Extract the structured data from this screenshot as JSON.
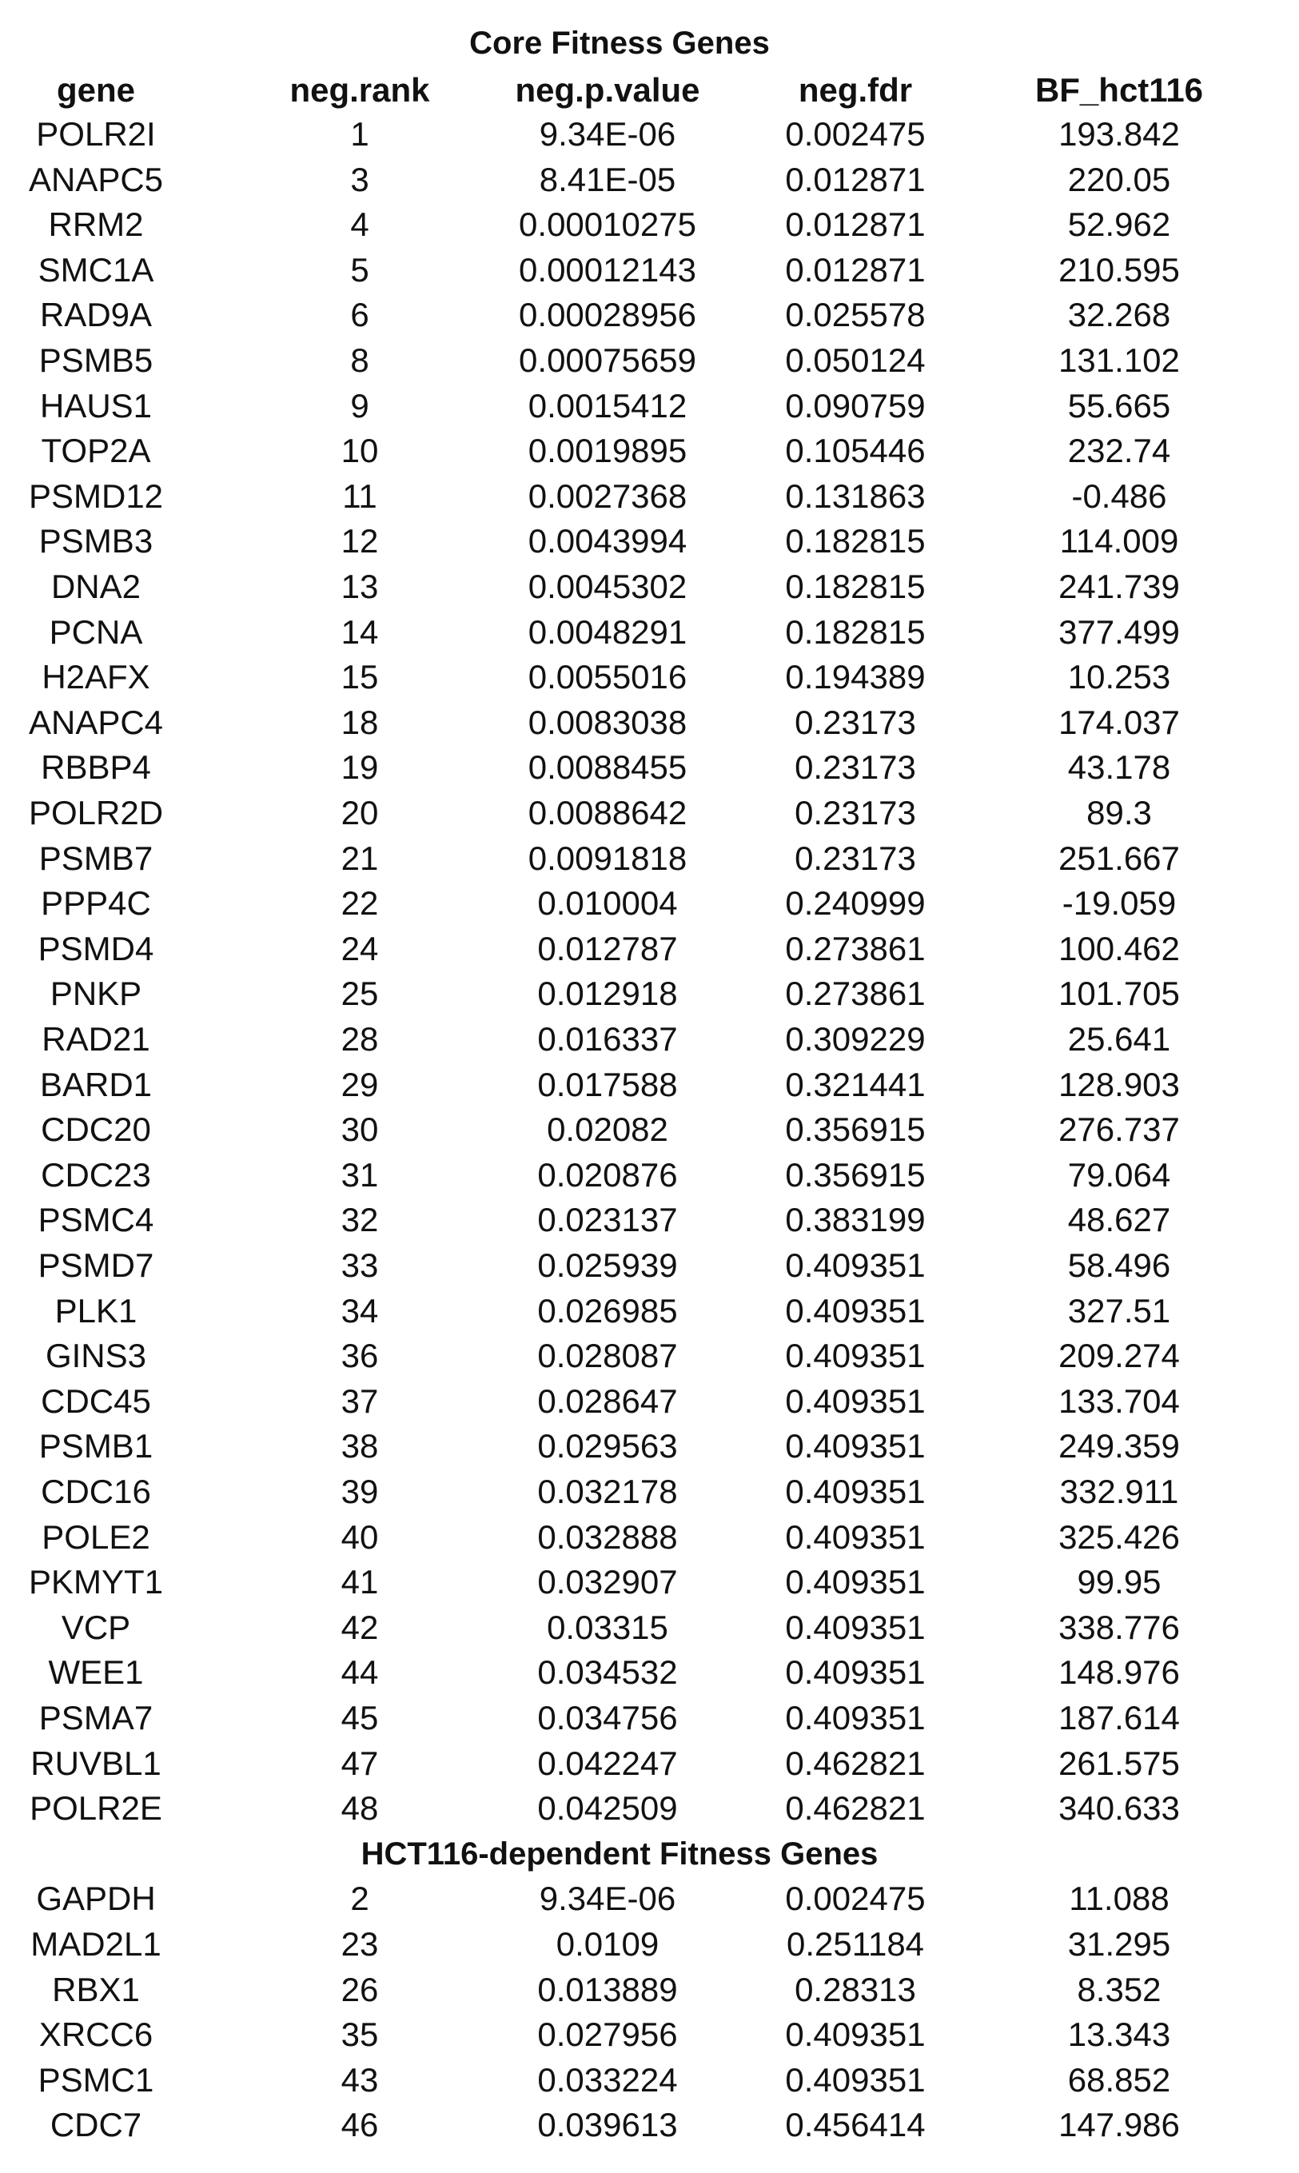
{
  "table": {
    "title": "Core Fitness Genes",
    "columns": [
      "gene",
      "neg.rank",
      "neg.p.value",
      "neg.fdr",
      "BF_hct116"
    ],
    "core_rows": [
      [
        "POLR2I",
        "1",
        "9.34E-06",
        "0.002475",
        "193.842"
      ],
      [
        "ANAPC5",
        "3",
        "8.41E-05",
        "0.012871",
        "220.05"
      ],
      [
        "RRM2",
        "4",
        "0.00010275",
        "0.012871",
        "52.962"
      ],
      [
        "SMC1A",
        "5",
        "0.00012143",
        "0.012871",
        "210.595"
      ],
      [
        "RAD9A",
        "6",
        "0.00028956",
        "0.025578",
        "32.268"
      ],
      [
        "PSMB5",
        "8",
        "0.00075659",
        "0.050124",
        "131.102"
      ],
      [
        "HAUS1",
        "9",
        "0.0015412",
        "0.090759",
        "55.665"
      ],
      [
        "TOP2A",
        "10",
        "0.0019895",
        "0.105446",
        "232.74"
      ],
      [
        "PSMD12",
        "11",
        "0.0027368",
        "0.131863",
        "-0.486"
      ],
      [
        "PSMB3",
        "12",
        "0.0043994",
        "0.182815",
        "114.009"
      ],
      [
        "DNA2",
        "13",
        "0.0045302",
        "0.182815",
        "241.739"
      ],
      [
        "PCNA",
        "14",
        "0.0048291",
        "0.182815",
        "377.499"
      ],
      [
        "H2AFX",
        "15",
        "0.0055016",
        "0.194389",
        "10.253"
      ],
      [
        "ANAPC4",
        "18",
        "0.0083038",
        "0.23173",
        "174.037"
      ],
      [
        "RBBP4",
        "19",
        "0.0088455",
        "0.23173",
        "43.178"
      ],
      [
        "POLR2D",
        "20",
        "0.0088642",
        "0.23173",
        "89.3"
      ],
      [
        "PSMB7",
        "21",
        "0.0091818",
        "0.23173",
        "251.667"
      ],
      [
        "PPP4C",
        "22",
        "0.010004",
        "0.240999",
        "-19.059"
      ],
      [
        "PSMD4",
        "24",
        "0.012787",
        "0.273861",
        "100.462"
      ],
      [
        "PNKP",
        "25",
        "0.012918",
        "0.273861",
        "101.705"
      ],
      [
        "RAD21",
        "28",
        "0.016337",
        "0.309229",
        "25.641"
      ],
      [
        "BARD1",
        "29",
        "0.017588",
        "0.321441",
        "128.903"
      ],
      [
        "CDC20",
        "30",
        "0.02082",
        "0.356915",
        "276.737"
      ],
      [
        "CDC23",
        "31",
        "0.020876",
        "0.356915",
        "79.064"
      ],
      [
        "PSMC4",
        "32",
        "0.023137",
        "0.383199",
        "48.627"
      ],
      [
        "PSMD7",
        "33",
        "0.025939",
        "0.409351",
        "58.496"
      ],
      [
        "PLK1",
        "34",
        "0.026985",
        "0.409351",
        "327.51"
      ],
      [
        "GINS3",
        "36",
        "0.028087",
        "0.409351",
        "209.274"
      ],
      [
        "CDC45",
        "37",
        "0.028647",
        "0.409351",
        "133.704"
      ],
      [
        "PSMB1",
        "38",
        "0.029563",
        "0.409351",
        "249.359"
      ],
      [
        "CDC16",
        "39",
        "0.032178",
        "0.409351",
        "332.911"
      ],
      [
        "POLE2",
        "40",
        "0.032888",
        "0.409351",
        "325.426"
      ],
      [
        "PKMYT1",
        "41",
        "0.032907",
        "0.409351",
        "99.95"
      ],
      [
        "VCP",
        "42",
        "0.03315",
        "0.409351",
        "338.776"
      ],
      [
        "WEE1",
        "44",
        "0.034532",
        "0.409351",
        "148.976"
      ],
      [
        "PSMA7",
        "45",
        "0.034756",
        "0.409351",
        "187.614"
      ],
      [
        "RUVBL1",
        "47",
        "0.042247",
        "0.462821",
        "261.575"
      ],
      [
        "POLR2E",
        "48",
        "0.042509",
        "0.462821",
        "340.633"
      ]
    ],
    "section2_title": "HCT116-dependent Fitness Genes",
    "hct116_rows": [
      [
        "GAPDH",
        "2",
        "9.34E-06",
        "0.002475",
        "11.088"
      ],
      [
        "MAD2L1",
        "23",
        "0.0109",
        "0.251184",
        "31.295"
      ],
      [
        "RBX1",
        "26",
        "0.013889",
        "0.28313",
        "8.352"
      ],
      [
        "XRCC6",
        "35",
        "0.027956",
        "0.409351",
        "13.343"
      ],
      [
        "PSMC1",
        "43",
        "0.033224",
        "0.409351",
        "68.852"
      ],
      [
        "CDC7",
        "46",
        "0.039613",
        "0.456414",
        "147.986"
      ]
    ]
  }
}
